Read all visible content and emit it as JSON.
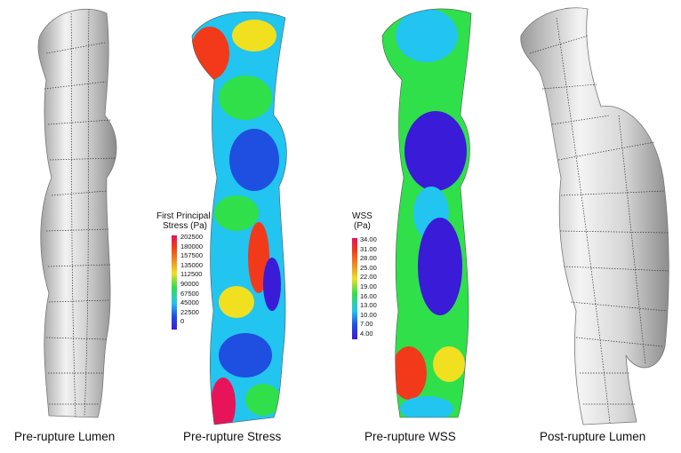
{
  "panels": [
    {
      "caption": "Pre-rupture Lumen"
    },
    {
      "caption": "Pre-rupture Stress"
    },
    {
      "caption": "Pre-rupture WSS"
    },
    {
      "caption": "Post-rupture Lumen"
    }
  ],
  "stress_legend": {
    "title_line1": "First Principal",
    "title_line2": "Stress (Pa)",
    "ticks": [
      "202500",
      "180000",
      "157500",
      "135000",
      "112500",
      "90000",
      "67500",
      "45000",
      "22500",
      "0"
    ]
  },
  "wss_legend": {
    "title_line1": "WSS",
    "title_line2": "(Pa)",
    "ticks": [
      "34.00",
      "31.00",
      "28.00",
      "25.00",
      "22.00",
      "19.00",
      "16.00",
      "13.00",
      "10.00",
      "7.00",
      "4.00"
    ]
  },
  "colors": {
    "colormap_top": "#e8145a",
    "colormap_mid": "#2fe04a",
    "colormap_bottom": "#3a1bd8",
    "lumen_surface": "#d9d9d9"
  }
}
